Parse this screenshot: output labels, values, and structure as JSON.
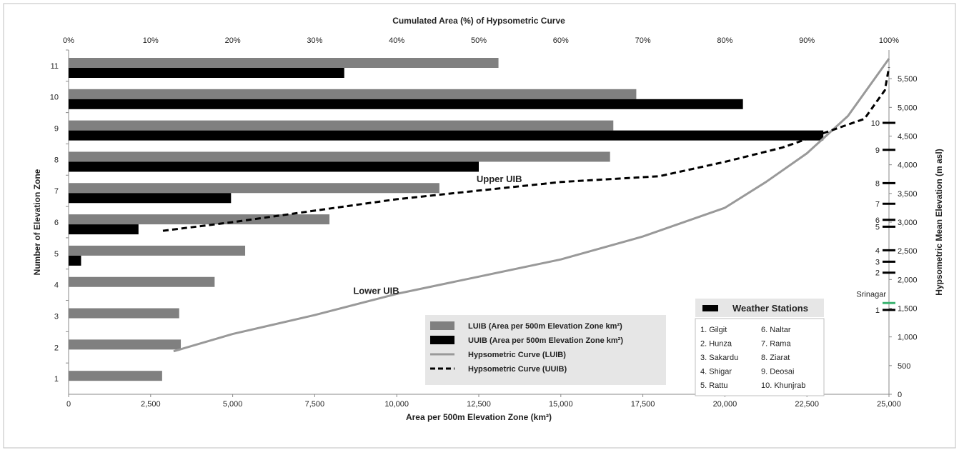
{
  "chart_data": {
    "type": "bar",
    "orientation": "horizontal",
    "top_axis_title": "Cumulated Area (%) of Hypsometric Curve",
    "top_ticks": [
      "0%",
      "10%",
      "20%",
      "30%",
      "40%",
      "50%",
      "60%",
      "70%",
      "80%",
      "90%",
      "100%"
    ],
    "xlabel": "Area per 500m Elevation Zone (km²)",
    "xlim": [
      0,
      25000
    ],
    "x_ticks": [
      0,
      2500,
      5000,
      7500,
      10000,
      12500,
      15000,
      17500,
      20000,
      22500,
      25000
    ],
    "x_tick_labels": [
      "0",
      "2,500",
      "5,000",
      "7,500",
      "10,000",
      "12,500",
      "15,000",
      "17,500",
      "20,000",
      "22,500",
      "25,000"
    ],
    "ylabel": "Number of Elevation Zone",
    "categories": [
      "1",
      "2",
      "3",
      "4",
      "5",
      "6",
      "7",
      "8",
      "9",
      "10",
      "11"
    ],
    "series": [
      {
        "name": "LUIB (Area per 500m Elevation Zone km²)",
        "color": "#808080",
        "values": [
          2850,
          3420,
          3370,
          4450,
          5380,
          7950,
          11300,
          16500,
          16600,
          17300,
          13100
        ]
      },
      {
        "name": "UUIB (Area per 500m Elevation Zone km²)",
        "color": "#000000",
        "values": [
          0,
          0,
          0,
          0,
          380,
          2130,
          4950,
          12500,
          23000,
          20550,
          8400
        ]
      }
    ],
    "right_axis_title": "Hypsometric Mean Elevation (m asl)",
    "right_ylim": [
      0,
      6000
    ],
    "right_ticks": [
      0,
      500,
      1000,
      1500,
      2000,
      2500,
      3000,
      3500,
      4000,
      4500,
      5000,
      5500
    ],
    "right_tick_labels": [
      "0",
      "500",
      "1,000",
      "1,500",
      "2,000",
      "2,500",
      "3,000",
      "3,500",
      "4,000",
      "4,500",
      "5,000",
      "5,500"
    ],
    "curves": [
      {
        "name": "Hypsometric Curve (LUIB)",
        "style": "solid",
        "color": "#999999",
        "points": [
          [
            12.8,
            750
          ],
          [
            20,
            1050
          ],
          [
            30,
            1380
          ],
          [
            40,
            1750
          ],
          [
            50,
            2050
          ],
          [
            60,
            2350
          ],
          [
            70,
            2750
          ],
          [
            80,
            3250
          ],
          [
            85,
            3700
          ],
          [
            90,
            4200
          ],
          [
            95,
            4850
          ],
          [
            100,
            5850
          ]
        ]
      },
      {
        "name": "Hypsometric Curve (UUIB)",
        "style": "dashed",
        "color": "#000000",
        "points": [
          [
            11.5,
            2850
          ],
          [
            20,
            3000
          ],
          [
            30,
            3200
          ],
          [
            40,
            3400
          ],
          [
            50,
            3550
          ],
          [
            60,
            3700
          ],
          [
            72,
            3800
          ],
          [
            80,
            4050
          ],
          [
            87,
            4300
          ],
          [
            92,
            4550
          ],
          [
            97,
            4800
          ],
          [
            99.5,
            5300
          ],
          [
            100,
            5700
          ]
        ]
      }
    ],
    "annotations": [
      {
        "text": "Upper UIB",
        "x_pct": 52.5,
        "elev": 3700
      },
      {
        "text": "Lower UIB",
        "x_pct": 37.5,
        "elev": 1750
      }
    ],
    "stations": [
      {
        "num": "1",
        "elev": 1470
      },
      {
        "num": "2",
        "elev": 2120
      },
      {
        "num": "3",
        "elev": 2310
      },
      {
        "num": "4",
        "elev": 2510
      },
      {
        "num": "5",
        "elev": 2920
      },
      {
        "num": "6",
        "elev": 3040
      },
      {
        "num": "7",
        "elev": 3320
      },
      {
        "num": "8",
        "elev": 3680
      },
      {
        "num": "9",
        "elev": 4260
      },
      {
        "num": "10",
        "elev": 4730
      }
    ],
    "srinagar": {
      "name": "Srinagar",
      "elev": 1590,
      "color": "#3cb371"
    },
    "legend": {
      "position": "bottom-center",
      "items": [
        {
          "label": "LUIB (Area per 500m Elevation Zone km²)",
          "kind": "bar",
          "color": "#808080"
        },
        {
          "label": "UUIB (Area per 500m Elevation Zone km²)",
          "kind": "bar",
          "color": "#000000"
        },
        {
          "label": "Hypsometric Curve (LUIB)",
          "kind": "line",
          "color": "#999999"
        },
        {
          "label": "Hypsometric Curve (UUIB)",
          "kind": "dash",
          "color": "#000000"
        }
      ]
    },
    "stations_legend": {
      "position": "bottom-right",
      "title": "Weather Stations",
      "col1": [
        "1. Gilgit",
        "2. Hunza",
        "3. Sakardu",
        "4. Shigar",
        "5. Rattu"
      ],
      "col2": [
        "6. Naltar",
        "7. Rama",
        "8. Ziarat",
        "9. Deosai",
        "10. Khunjrab"
      ]
    },
    "grid": false
  }
}
